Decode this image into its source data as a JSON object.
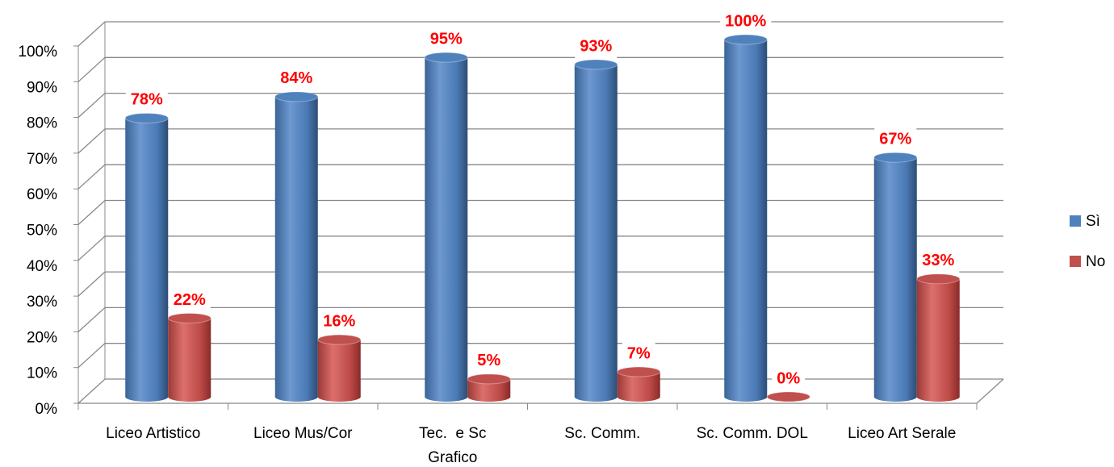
{
  "chart_data": {
    "type": "bar3d",
    "categories": [
      "Liceo Artistico",
      "Liceo Mus/Cor",
      "Tec.  e Sc\nGrafico",
      "Sc. Comm.",
      "Sc. Comm. DOL",
      "Liceo Art Serale"
    ],
    "series": [
      {
        "name": "Sì",
        "color": "#4f81bd",
        "values": [
          78,
          84,
          95,
          93,
          100,
          67
        ],
        "value_labels": [
          "78%",
          "84%",
          "95%",
          "93%",
          "100%",
          "67%"
        ]
      },
      {
        "name": "No",
        "color": "#c0504d",
        "values": [
          22,
          16,
          5,
          7,
          0,
          33
        ],
        "value_labels": [
          "22%",
          "16%",
          "5%",
          "7%",
          "0%",
          "33%"
        ]
      }
    ],
    "ylim": [
      0,
      100
    ],
    "yticks": [
      {
        "value": 0,
        "label": "0%"
      },
      {
        "value": 10,
        "label": "10%"
      },
      {
        "value": 20,
        "label": "20%"
      },
      {
        "value": 30,
        "label": "30%"
      },
      {
        "value": 40,
        "label": "40%"
      },
      {
        "value": 50,
        "label": "50%"
      },
      {
        "value": 60,
        "label": "60%"
      },
      {
        "value": 70,
        "label": "70%"
      },
      {
        "value": 80,
        "label": "80%"
      },
      {
        "value": 90,
        "label": "90%"
      },
      {
        "value": 100,
        "label": "100%"
      }
    ],
    "grid": true,
    "legend": "right"
  }
}
